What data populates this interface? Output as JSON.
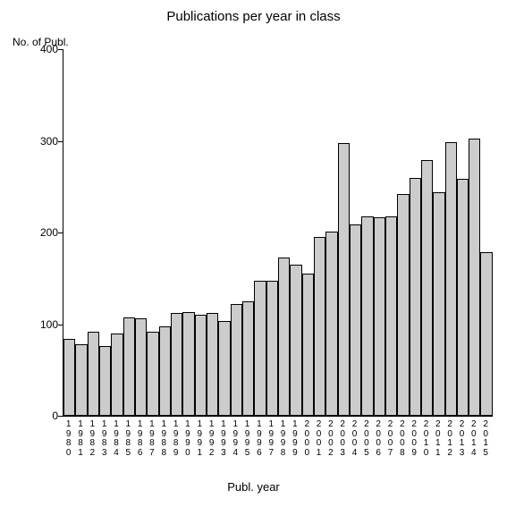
{
  "chart": {
    "type": "bar",
    "title": "Publications per year in class",
    "title_fontsize": 15,
    "y_axis_label": "No. of Publ.",
    "x_axis_title": "Publ. year",
    "label_fontsize": 12,
    "xlabel_fontsize": 10,
    "ylim": [
      0,
      400
    ],
    "yticks": [
      0,
      100,
      200,
      300,
      400
    ],
    "background_color": "#ffffff",
    "axis_color": "#000000",
    "bar_fill_color": "#cccccc",
    "bar_border_color": "#000000",
    "categories": [
      "1980",
      "1981",
      "1982",
      "1983",
      "1984",
      "1985",
      "1986",
      "1987",
      "1988",
      "1989",
      "1990",
      "1991",
      "1992",
      "1993",
      "1994",
      "1995",
      "1996",
      "1997",
      "1998",
      "1999",
      "2000",
      "2001",
      "2002",
      "2003",
      "2004",
      "2005",
      "2006",
      "2007",
      "2008",
      "2009",
      "2010",
      "2011",
      "2012",
      "2013",
      "2014",
      "2015"
    ],
    "values": [
      84,
      78,
      92,
      76,
      90,
      107,
      106,
      92,
      98,
      112,
      113,
      110,
      112,
      103,
      122,
      125,
      147,
      147,
      173,
      165,
      155,
      195,
      201,
      298,
      209,
      218,
      217,
      218,
      242,
      260,
      279,
      244,
      299,
      259,
      302,
      179
    ]
  }
}
